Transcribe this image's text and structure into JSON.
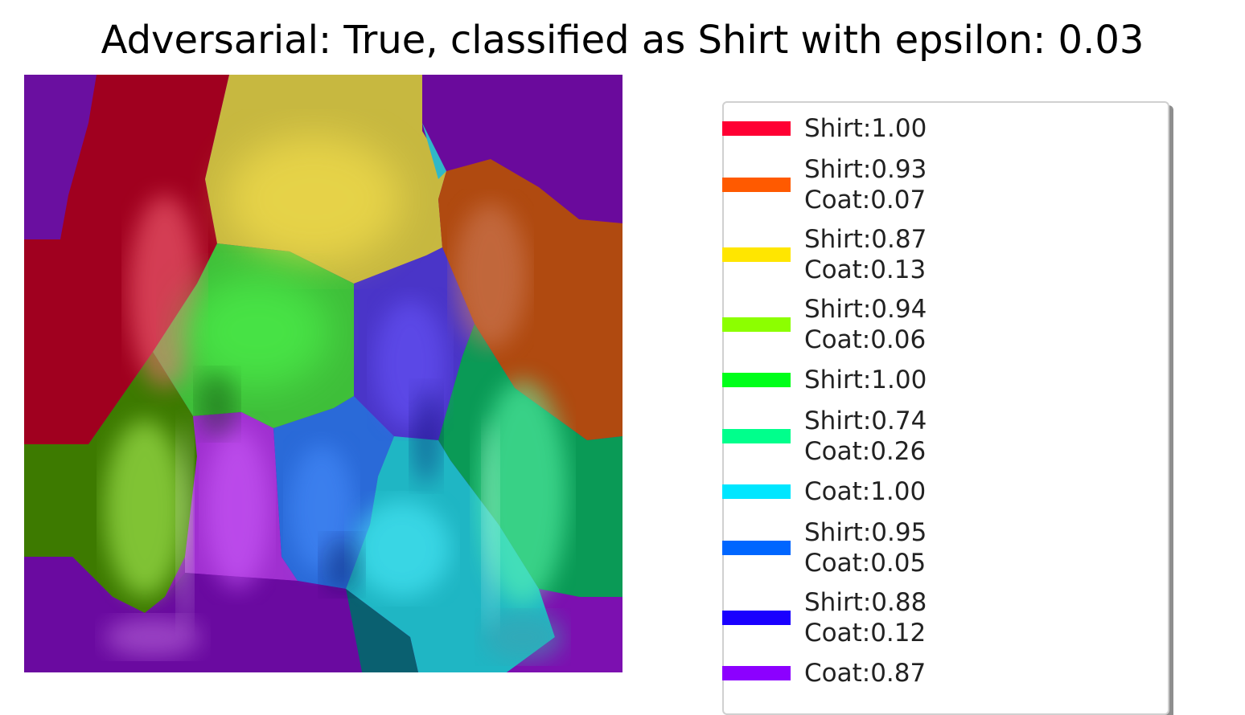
{
  "title": "Adversarial: True, classified as Shirt with epsilon: 0.03",
  "legend": {
    "entries": [
      {
        "color": "#ff0033",
        "lines": [
          "Shirt:1.00"
        ]
      },
      {
        "color": "#ff5a00",
        "lines": [
          "Shirt:0.93",
          "Coat:0.07"
        ]
      },
      {
        "color": "#ffe600",
        "lines": [
          "Shirt:0.87",
          "Coat:0.13"
        ]
      },
      {
        "color": "#8cff00",
        "lines": [
          "Shirt:0.94",
          "Coat:0.06"
        ]
      },
      {
        "color": "#00ff1a",
        "lines": [
          "Shirt:1.00"
        ]
      },
      {
        "color": "#00ff8c",
        "lines": [
          "Shirt:0.74",
          "Coat:0.26"
        ]
      },
      {
        "color": "#00e6ff",
        "lines": [
          "Coat:1.00"
        ]
      },
      {
        "color": "#0066ff",
        "lines": [
          "Shirt:0.95",
          "Coat:0.05"
        ]
      },
      {
        "color": "#1a00ff",
        "lines": [
          "Shirt:0.88",
          "Coat:0.12"
        ]
      },
      {
        "color": "#8c00ff",
        "lines": [
          "Coat:0.87"
        ]
      }
    ]
  }
}
